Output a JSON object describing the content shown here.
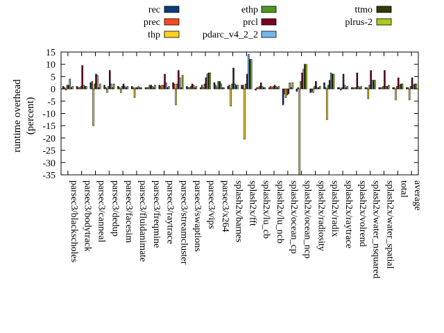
{
  "chart_data": {
    "type": "bar",
    "ylabel": "runtime overhead",
    "ylabel_unit": "(percent)",
    "ylim": [
      -35,
      15
    ],
    "yticks": [
      15,
      10,
      5,
      0,
      -5,
      -10,
      -15,
      -20,
      -25,
      -30,
      -35
    ],
    "grid": false,
    "legend_position": "top",
    "categories": [
      "parsec3/blackscholes",
      "parsec3/bodytrack",
      "parsec3/canneal",
      "parsec3/dedup",
      "parsec3/facesim",
      "parsec3/fluidanimate",
      "parsec3/freqmine",
      "parsec3/raytrace",
      "parsec3/streamcluster",
      "parsec3/swaptions",
      "parsec3/vips",
      "parsec3/x264",
      "splash2x/barnes",
      "splash2x/fft",
      "splash2x/lu_cb",
      "splash2x/lu_ncb",
      "splash2x/ocean_cp",
      "splash2x/ocean_ncp",
      "splash2x/radiosity",
      "splash2x/radix",
      "splash2x/raytrace",
      "splash2x/volrend",
      "splash2x/water_nsquared",
      "splash2x/water_spatial",
      "total",
      "average"
    ],
    "series": [
      {
        "name": "rec",
        "color": "#0a3d7a",
        "values": [
          1,
          1,
          2.5,
          1.5,
          1,
          1,
          0.5,
          1.5,
          2.5,
          1,
          0.5,
          2.5,
          1,
          1.5,
          -0.5,
          0.5,
          -6.5,
          -1,
          -1.5,
          2.5,
          0.5,
          0.5,
          0.5,
          0.5,
          0.5,
          0.5
        ]
      },
      {
        "name": "prec",
        "color": "#ff4a1c",
        "values": [
          0.5,
          0.5,
          3,
          0.5,
          0.5,
          0.5,
          0.5,
          1,
          2,
          0.5,
          1.5,
          1.5,
          1.5,
          1.5,
          0.5,
          1,
          -2,
          0.5,
          -1,
          0.5,
          0.5,
          0.5,
          0.5,
          0.5,
          0.5,
          0.5
        ]
      },
      {
        "name": "thp",
        "color": "#ffd21f",
        "values": [
          -0.5,
          0.5,
          -15,
          -1.5,
          -1.5,
          -3.5,
          0.5,
          1.5,
          -6.5,
          0.5,
          0.5,
          0.5,
          -7,
          -20.5,
          0.5,
          0.5,
          -3.5,
          -35,
          -1.5,
          -12.5,
          -0.5,
          0.5,
          -4,
          0.5,
          -4.5,
          -4.5
        ]
      },
      {
        "name": "ethp",
        "color": "#4e9a24",
        "values": [
          1.5,
          1,
          2,
          1,
          1,
          0.5,
          1.5,
          1.5,
          2,
          1,
          2,
          3,
          2,
          2,
          1,
          1,
          -2.5,
          3,
          1,
          1.5,
          0.5,
          0.5,
          1.5,
          1,
          1,
          1
        ]
      },
      {
        "name": "prcl",
        "color": "#7a0022",
        "values": [
          1.5,
          9.5,
          6,
          7.5,
          2,
          0.5,
          1.5,
          6,
          7.5,
          2,
          4.5,
          3,
          8.5,
          6,
          2.5,
          1.5,
          -2,
          6.5,
          3,
          3.5,
          6,
          6.5,
          7.5,
          7.5,
          4.5,
          4.5
        ]
      },
      {
        "name": "pdarc_v4_2_2",
        "color": "#74b8ec",
        "values": [
          4,
          1.5,
          5.5,
          2,
          1,
          1,
          1,
          2.5,
          4.5,
          1.5,
          6,
          2,
          2,
          14,
          1,
          1,
          2.5,
          8,
          0.5,
          6.5,
          1.5,
          1,
          3.5,
          1,
          1.5,
          1.5
        ]
      },
      {
        "name": "ttmo",
        "color": "#2f3d0a",
        "values": [
          0.5,
          1,
          0.5,
          0.5,
          0.5,
          0.5,
          0.5,
          0.5,
          0.5,
          0.5,
          6.5,
          0.5,
          1.5,
          12,
          0.5,
          0.5,
          0.5,
          10,
          0.5,
          6,
          0.5,
          0.5,
          3.5,
          1,
          2,
          2
        ]
      },
      {
        "name": "plrus-2",
        "color": "#a6cc1e",
        "values": [
          1,
          1,
          2,
          2,
          1,
          0.5,
          1.5,
          1,
          5.5,
          1,
          6.5,
          0.5,
          1.5,
          12,
          0.5,
          1,
          2.5,
          10,
          1,
          6,
          1,
          1,
          3.5,
          1.5,
          2,
          2
        ]
      }
    ]
  }
}
